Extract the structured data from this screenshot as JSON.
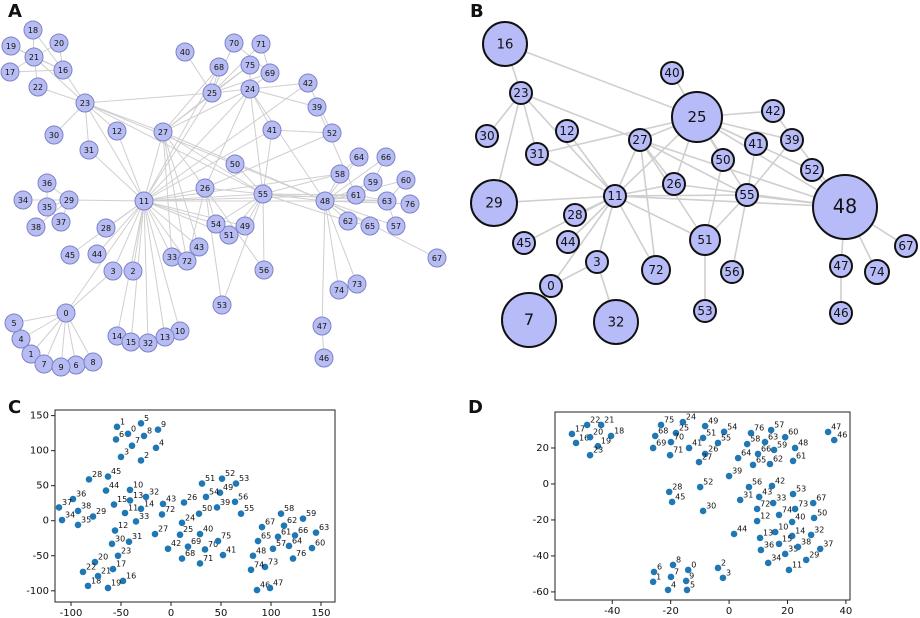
{
  "chart_data": [
    {
      "type": "network",
      "panel": "A",
      "nodes": [
        "0",
        "1",
        "2",
        "3",
        "4",
        "5",
        "6",
        "7",
        "8",
        "9",
        "10",
        "11",
        "12",
        "13",
        "14",
        "15",
        "16",
        "17",
        "18",
        "19",
        "20",
        "21",
        "22",
        "23",
        "24",
        "25",
        "26",
        "27",
        "28",
        "29",
        "30",
        "31",
        "32",
        "33",
        "34",
        "35",
        "36",
        "37",
        "38",
        "39",
        "40",
        "41",
        "42",
        "43",
        "44",
        "45",
        "46",
        "47",
        "48",
        "49",
        "50",
        "51",
        "52",
        "53",
        "54",
        "55",
        "56",
        "57",
        "58",
        "59",
        "60",
        "61",
        "62",
        "63",
        "64",
        "65",
        "66",
        "67",
        "68",
        "69",
        "70",
        "71",
        "72",
        "73",
        "74",
        "75",
        "76"
      ],
      "color": "#b7bcf2"
    },
    {
      "type": "network",
      "panel": "B",
      "nodes": [
        "16",
        "40",
        "23",
        "25",
        "42",
        "30",
        "12",
        "27",
        "41",
        "39",
        "31",
        "50",
        "52",
        "26",
        "11",
        "55",
        "29",
        "48",
        "28",
        "45",
        "44",
        "51",
        "67",
        "3",
        "72",
        "56",
        "47",
        "74",
        "0",
        "53",
        "46",
        "7",
        "32"
      ],
      "color": "#b7bcf8"
    },
    {
      "type": "scatter",
      "panel": "C",
      "color": "#1f77b4",
      "labels": [
        "0",
        "1",
        "2",
        "3",
        "4",
        "5",
        "6",
        "7",
        "8",
        "9",
        "10",
        "11",
        "12",
        "13",
        "14",
        "15",
        "16",
        "17",
        "18",
        "19",
        "20",
        "21",
        "22",
        "23",
        "24",
        "25",
        "26",
        "27",
        "28",
        "29",
        "30",
        "31",
        "32",
        "33",
        "34",
        "35",
        "36",
        "37",
        "38",
        "39",
        "40",
        "41",
        "42",
        "43",
        "44",
        "45",
        "46",
        "47",
        "48",
        "49",
        "50",
        "51",
        "52",
        "53",
        "54",
        "55",
        "56",
        "57",
        "58",
        "59",
        "60",
        "61",
        "62",
        "63",
        "64",
        "65",
        "66",
        "67",
        "68",
        "69",
        "70",
        "71",
        "72",
        "73",
        "74",
        "75",
        "76"
      ],
      "x": [
        -43,
        -54,
        -30,
        -50,
        -15,
        -30,
        -55,
        -39,
        -27,
        -13,
        -41,
        -46,
        -56,
        -41,
        -30,
        -57,
        -48,
        -58,
        -83,
        -63,
        -76,
        -73,
        -88,
        -53,
        11,
        9,
        13,
        -16,
        -82,
        -78,
        -59,
        -42,
        -25,
        -35,
        -109,
        -93,
        -98,
        -112,
        -93,
        46,
        29,
        52,
        -3,
        -8,
        -65,
        -63,
        86,
        99,
        82,
        49,
        28,
        31,
        51,
        65,
        35,
        70,
        64,
        102,
        110,
        132,
        141,
        107,
        113,
        145,
        118,
        87,
        124,
        91,
        11,
        17,
        34,
        29,
        -9,
        94,
        80,
        47,
        122
      ],
      "y": [
        124,
        134,
        86,
        91,
        104,
        139,
        116,
        107,
        121,
        130,
        44,
        11,
        -14,
        29,
        17,
        23,
        -86,
        -69,
        -93,
        -96,
        -59,
        -79,
        -73,
        -50,
        -3,
        -20,
        26,
        -19,
        59,
        6,
        -33,
        -30,
        34,
        -1,
        1,
        -6,
        31,
        19,
        14,
        19,
        -19,
        -49,
        -40,
        24,
        43,
        63,
        -99,
        -96,
        -50,
        40,
        10,
        53,
        60,
        53,
        34,
        10,
        27,
        -40,
        10,
        3,
        -39,
        -23,
        -7,
        -17,
        -36,
        -29,
        -21,
        -9,
        -54,
        -37,
        -41,
        -61,
        9,
        -66,
        -70,
        -29,
        -54
      ],
      "xlim": [
        -116,
        164
      ],
      "ylim": [
        -116,
        158
      ],
      "xticks": [
        -100,
        -50,
        0,
        50,
        100,
        150
      ],
      "yticks": [
        -100,
        -50,
        0,
        50,
        100,
        150
      ]
    },
    {
      "type": "scatter",
      "panel": "D",
      "color": "#1f77b4",
      "labels": [
        "0",
        "1",
        "2",
        "3",
        "4",
        "5",
        "6",
        "7",
        "8",
        "9",
        "10",
        "11",
        "12",
        "13",
        "14",
        "15",
        "16",
        "17",
        "18",
        "19",
        "20",
        "21",
        "22",
        "23",
        "24",
        "25",
        "26",
        "27",
        "28",
        "29",
        "30",
        "31",
        "32",
        "33",
        "34",
        "35",
        "36",
        "37",
        "38",
        "39",
        "40",
        "41",
        "42",
        "43",
        "44",
        "45",
        "46",
        "47",
        "48",
        "49",
        "50",
        "51",
        "52",
        "53",
        "54",
        "55",
        "56",
        "57",
        "58",
        "59",
        "60",
        "61",
        "62",
        "63",
        "64",
        "65",
        "66",
        "67",
        "68",
        "69",
        "70",
        "71",
        "72",
        "73",
        "74",
        "75",
        "76"
      ],
      "x": [
        -14,
        -26,
        -3.8,
        -2.1,
        -20.9,
        -14.4,
        -25.7,
        -19.9,
        -19.2,
        -14.7,
        15.8,
        20.5,
        9.6,
        10.6,
        21.6,
        17.1,
        -52.4,
        -53.8,
        -40.4,
        -44.9,
        -47.6,
        -43.8,
        -48.6,
        -47.6,
        -15.8,
        -18.2,
        -8.2,
        -10.3,
        -20.5,
        26.4,
        -8.9,
        3.8,
        28.1,
        15.1,
        13.4,
        19.2,
        10.9,
        31.2,
        23.6,
        0,
        21.6,
        -13.7,
        14.7,
        10.3,
        1.7,
        -19.5,
        36,
        33.9,
        22.6,
        -8.2,
        29.1,
        -8.9,
        -9.9,
        21.9,
        -1.7,
        -3.8,
        6.8,
        14.4,
        6.2,
        15.4,
        19.2,
        21.9,
        14,
        12.3,
        3.1,
        8.2,
        9.9,
        28.8,
        -25.3,
        -26,
        -19.9,
        -20.2,
        9.6,
        22.6,
        17.1,
        -23.3,
        7.5
      ],
      "y": [
        -47.8,
        -54.4,
        -46.7,
        -52.2,
        -58.9,
        -58.9,
        -48.9,
        -51.7,
        -45,
        -53.9,
        -26.7,
        -47.8,
        -20.6,
        -30,
        -28.9,
        -33.3,
        22.8,
        27.8,
        26.7,
        21,
        26,
        32.8,
        32.8,
        16,
        34.4,
        28.3,
        16.7,
        12.2,
        -4.4,
        -42.2,
        -15,
        -8.9,
        -28.3,
        -10.6,
        -43.9,
        -38.9,
        -36.7,
        -36.1,
        -35,
        4.4,
        -21.1,
        20,
        -1.1,
        -7.2,
        -27.8,
        -10,
        24.4,
        28.9,
        20,
        32.2,
        -18.9,
        25.6,
        -1.7,
        -5.6,
        29,
        22.8,
        -1.7,
        30,
        22.2,
        18.9,
        26,
        12.8,
        11.1,
        23.3,
        14.4,
        10.6,
        16.7,
        -10.6,
        26.7,
        20,
        23.3,
        16,
        -13.9,
        -13.9,
        -17.2,
        32.8,
        28.3
      ],
      "xlim": [
        -59.6,
        41.4
      ],
      "ylim": [
        -64.5,
        40
      ],
      "xticks": [
        -40,
        -20,
        0,
        20,
        40
      ],
      "yticks": [
        -60,
        -40,
        -20,
        0,
        20
      ]
    }
  ]
}
